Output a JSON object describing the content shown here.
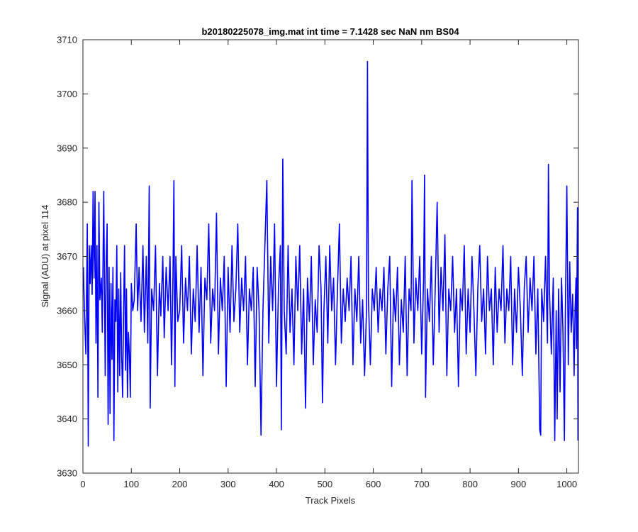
{
  "chart_data": {
    "type": "line",
    "title": "b20180225078_img.mat int time = 7.1428 sec  NaN nm BS04",
    "xlabel": "Track Pixels",
    "ylabel": "Signal (ADU) at pixel 114",
    "xlim": [
      0,
      1024
    ],
    "ylim": [
      3630,
      3710
    ],
    "xticks": [
      0,
      100,
      200,
      300,
      400,
      500,
      600,
      700,
      800,
      900,
      1000
    ],
    "yticks": [
      3630,
      3640,
      3650,
      3660,
      3670,
      3680,
      3690,
      3700,
      3710
    ],
    "grid": false,
    "series": [
      {
        "color": "#0000ff",
        "points": [
          [
            1,
            3668
          ],
          [
            3,
            3660
          ],
          [
            6,
            3652
          ],
          [
            9,
            3676
          ],
          [
            11,
            3635
          ],
          [
            13,
            3672
          ],
          [
            15,
            3665
          ],
          [
            17,
            3672
          ],
          [
            19,
            3663
          ],
          [
            21,
            3682
          ],
          [
            23,
            3666
          ],
          [
            25,
            3682
          ],
          [
            27,
            3654
          ],
          [
            29,
            3672
          ],
          [
            31,
            3644
          ],
          [
            33,
            3680
          ],
          [
            35,
            3662
          ],
          [
            38,
            3666
          ],
          [
            40,
            3656
          ],
          [
            43,
            3682
          ],
          [
            46,
            3648
          ],
          [
            48,
            3669
          ],
          [
            50,
            3676
          ],
          [
            52,
            3639
          ],
          [
            54,
            3668
          ],
          [
            56,
            3641
          ],
          [
            58,
            3665
          ],
          [
            60,
            3651
          ],
          [
            62,
            3668
          ],
          [
            64,
            3636
          ],
          [
            66,
            3662
          ],
          [
            68,
            3658
          ],
          [
            70,
            3672
          ],
          [
            72,
            3645
          ],
          [
            74,
            3664
          ],
          [
            76,
            3648
          ],
          [
            78,
            3667
          ],
          [
            80,
            3652
          ],
          [
            82,
            3644
          ],
          [
            84,
            3660
          ],
          [
            86,
            3672
          ],
          [
            88,
            3649
          ],
          [
            90,
            3664
          ],
          [
            92,
            3644
          ],
          [
            94,
            3656
          ],
          [
            96,
            3652
          ],
          [
            98,
            3644
          ],
          [
            100,
            3665
          ],
          [
            103,
            3660
          ],
          [
            106,
            3662
          ],
          [
            110,
            3676
          ],
          [
            113,
            3660
          ],
          [
            116,
            3668
          ],
          [
            120,
            3658
          ],
          [
            124,
            3672
          ],
          [
            127,
            3656
          ],
          [
            131,
            3670
          ],
          [
            134,
            3654
          ],
          [
            137,
            3683
          ],
          [
            139,
            3642
          ],
          [
            142,
            3664
          ],
          [
            146,
            3660
          ],
          [
            150,
            3672
          ],
          [
            154,
            3648
          ],
          [
            158,
            3665
          ],
          [
            161,
            3659
          ],
          [
            165,
            3670
          ],
          [
            168,
            3655
          ],
          [
            172,
            3668
          ],
          [
            176,
            3660
          ],
          [
            180,
            3670
          ],
          [
            183,
            3650
          ],
          [
            186,
            3666
          ],
          [
            188,
            3684
          ],
          [
            190,
            3646
          ],
          [
            192,
            3670
          ],
          [
            196,
            3658
          ],
          [
            200,
            3660
          ],
          [
            204,
            3672
          ],
          [
            208,
            3654
          ],
          [
            212,
            3666
          ],
          [
            216,
            3660
          ],
          [
            220,
            3670
          ],
          [
            224,
            3652
          ],
          [
            228,
            3664
          ],
          [
            232,
            3658
          ],
          [
            236,
            3672
          ],
          [
            240,
            3656
          ],
          [
            244,
            3668
          ],
          [
            248,
            3648
          ],
          [
            252,
            3666
          ],
          [
            256,
            3662
          ],
          [
            260,
            3676
          ],
          [
            264,
            3654
          ],
          [
            268,
            3664
          ],
          [
            272,
            3660
          ],
          [
            276,
            3678
          ],
          [
            280,
            3652
          ],
          [
            284,
            3666
          ],
          [
            288,
            3660
          ],
          [
            292,
            3670
          ],
          [
            296,
            3646
          ],
          [
            300,
            3668
          ],
          [
            304,
            3656
          ],
          [
            308,
            3672
          ],
          [
            312,
            3658
          ],
          [
            316,
            3664
          ],
          [
            320,
            3676
          ],
          [
            324,
            3656
          ],
          [
            328,
            3666
          ],
          [
            332,
            3660
          ],
          [
            336,
            3670
          ],
          [
            340,
            3650
          ],
          [
            344,
            3664
          ],
          [
            348,
            3660
          ],
          [
            352,
            3668
          ],
          [
            356,
            3646
          ],
          [
            360,
            3668
          ],
          [
            364,
            3660
          ],
          [
            368,
            3637
          ],
          [
            372,
            3660
          ],
          [
            376,
            3672
          ],
          [
            380,
            3684
          ],
          [
            384,
            3654
          ],
          [
            388,
            3670
          ],
          [
            392,
            3660
          ],
          [
            396,
            3676
          ],
          [
            400,
            3646
          ],
          [
            404,
            3664
          ],
          [
            408,
            3672
          ],
          [
            410,
            3638
          ],
          [
            413,
            3688
          ],
          [
            416,
            3660
          ],
          [
            420,
            3652
          ],
          [
            424,
            3672
          ],
          [
            428,
            3656
          ],
          [
            432,
            3664
          ],
          [
            436,
            3650
          ],
          [
            440,
            3670
          ],
          [
            444,
            3660
          ],
          [
            448,
            3672
          ],
          [
            452,
            3652
          ],
          [
            456,
            3664
          ],
          [
            460,
            3642
          ],
          [
            464,
            3666
          ],
          [
            468,
            3658
          ],
          [
            472,
            3670
          ],
          [
            476,
            3650
          ],
          [
            480,
            3662
          ],
          [
            484,
            3656
          ],
          [
            488,
            3672
          ],
          [
            492,
            3664
          ],
          [
            495,
            3643
          ],
          [
            498,
            3660
          ],
          [
            502,
            3670
          ],
          [
            506,
            3654
          ],
          [
            510,
            3672
          ],
          [
            514,
            3660
          ],
          [
            518,
            3666
          ],
          [
            522,
            3650
          ],
          [
            526,
            3664
          ],
          [
            530,
            3676
          ],
          [
            534,
            3654
          ],
          [
            538,
            3664
          ],
          [
            542,
            3658
          ],
          [
            546,
            3666
          ],
          [
            550,
            3660
          ],
          [
            554,
            3670
          ],
          [
            558,
            3650
          ],
          [
            562,
            3664
          ],
          [
            566,
            3658
          ],
          [
            570,
            3670
          ],
          [
            574,
            3654
          ],
          [
            578,
            3662
          ],
          [
            582,
            3648
          ],
          [
            586,
            3660
          ],
          [
            588,
            3706
          ],
          [
            590,
            3662
          ],
          [
            594,
            3650
          ],
          [
            598,
            3664
          ],
          [
            602,
            3660
          ],
          [
            606,
            3668
          ],
          [
            610,
            3656
          ],
          [
            614,
            3664
          ],
          [
            618,
            3660
          ],
          [
            622,
            3668
          ],
          [
            626,
            3652
          ],
          [
            630,
            3664
          ],
          [
            634,
            3670
          ],
          [
            638,
            3646
          ],
          [
            642,
            3664
          ],
          [
            646,
            3658
          ],
          [
            650,
            3668
          ],
          [
            654,
            3650
          ],
          [
            658,
            3662
          ],
          [
            662,
            3656
          ],
          [
            666,
            3670
          ],
          [
            670,
            3648
          ],
          [
            674,
            3664
          ],
          [
            678,
            3660
          ],
          [
            680,
            3684
          ],
          [
            684,
            3654
          ],
          [
            688,
            3666
          ],
          [
            692,
            3660
          ],
          [
            696,
            3670
          ],
          [
            700,
            3652
          ],
          [
            704,
            3666
          ],
          [
            706,
            3685
          ],
          [
            708,
            3644
          ],
          [
            712,
            3664
          ],
          [
            716,
            3658
          ],
          [
            720,
            3670
          ],
          [
            724,
            3650
          ],
          [
            728,
            3664
          ],
          [
            732,
            3680
          ],
          [
            736,
            3656
          ],
          [
            740,
            3668
          ],
          [
            744,
            3660
          ],
          [
            748,
            3674
          ],
          [
            752,
            3648
          ],
          [
            756,
            3664
          ],
          [
            760,
            3660
          ],
          [
            764,
            3670
          ],
          [
            768,
            3656
          ],
          [
            772,
            3664
          ],
          [
            776,
            3646
          ],
          [
            780,
            3664
          ],
          [
            784,
            3660
          ],
          [
            788,
            3672
          ],
          [
            792,
            3652
          ],
          [
            796,
            3664
          ],
          [
            800,
            3656
          ],
          [
            804,
            3670
          ],
          [
            808,
            3660
          ],
          [
            812,
            3648
          ],
          [
            816,
            3664
          ],
          [
            820,
            3672
          ],
          [
            824,
            3658
          ],
          [
            828,
            3664
          ],
          [
            832,
            3652
          ],
          [
            836,
            3670
          ],
          [
            840,
            3660
          ],
          [
            844,
            3664
          ],
          [
            848,
            3650
          ],
          [
            852,
            3668
          ],
          [
            856,
            3656
          ],
          [
            860,
            3664
          ],
          [
            864,
            3660
          ],
          [
            868,
            3672
          ],
          [
            872,
            3654
          ],
          [
            876,
            3664
          ],
          [
            880,
            3660
          ],
          [
            884,
            3670
          ],
          [
            888,
            3650
          ],
          [
            892,
            3664
          ],
          [
            896,
            3656
          ],
          [
            900,
            3668
          ],
          [
            904,
            3660
          ],
          [
            908,
            3648
          ],
          [
            912,
            3664
          ],
          [
            916,
            3670
          ],
          [
            920,
            3656
          ],
          [
            924,
            3666
          ],
          [
            928,
            3660
          ],
          [
            932,
            3670
          ],
          [
            936,
            3652
          ],
          [
            940,
            3664
          ],
          [
            944,
            3638
          ],
          [
            946,
            3637
          ],
          [
            948,
            3664
          ],
          [
            952,
            3658
          ],
          [
            956,
            3670
          ],
          [
            960,
            3654
          ],
          [
            962,
            3687
          ],
          [
            964,
            3664
          ],
          [
            968,
            3652
          ],
          [
            972,
            3666
          ],
          [
            975,
            3636
          ],
          [
            978,
            3660
          ],
          [
            980,
            3640
          ],
          [
            983,
            3664
          ],
          [
            986,
            3645
          ],
          [
            989,
            3666
          ],
          [
            992,
            3656
          ],
          [
            995,
            3636
          ],
          [
            997,
            3660
          ],
          [
            1000,
            3683
          ],
          [
            1003,
            3650
          ],
          [
            1006,
            3669
          ],
          [
            1009,
            3656
          ],
          [
            1012,
            3663
          ],
          [
            1015,
            3648
          ],
          [
            1017,
            3660
          ],
          [
            1019,
            3666
          ],
          [
            1020,
            3653
          ],
          [
            1022,
            3679
          ],
          [
            1023,
            3636
          ]
        ]
      }
    ]
  }
}
